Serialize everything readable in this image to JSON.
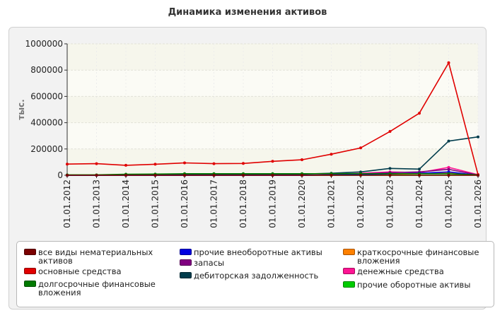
{
  "chart_data": {
    "type": "line",
    "title": "Динамика изменения активов",
    "ylabel": "тыс.",
    "xlabel": "",
    "ylim": [
      0,
      1000000
    ],
    "yticks": [
      "1000000",
      "800000",
      "600000",
      "400000",
      "200000",
      "0"
    ],
    "ytick_values": [
      1000000,
      800000,
      600000,
      400000,
      200000,
      0
    ],
    "categories": [
      "01.01.2012",
      "01.01.2013",
      "01.01.2014",
      "01.01.2015",
      "01.01.2016",
      "01.01.2017",
      "01.01.2018",
      "01.01.2019",
      "01.01.2020",
      "01.01.2021",
      "01.01.2022",
      "01.01.2023",
      "01.01.2024",
      "01.01.2025",
      "01.01.2026"
    ],
    "grid": true,
    "legend_position": "bottom",
    "series": [
      {
        "name": "все виды нематериальных активов",
        "color": "#7a0000",
        "values": [
          0,
          0,
          0,
          0,
          0,
          0,
          0,
          0,
          0,
          0,
          0,
          0,
          0,
          0,
          0
        ]
      },
      {
        "name": "основные средства",
        "color": "#e00000",
        "values": [
          85000,
          88000,
          76000,
          84000,
          94000,
          88000,
          90000,
          106000,
          118000,
          160000,
          208000,
          333000,
          472000,
          856000,
          5000
        ]
      },
      {
        "name": "долгосрочные финансовые вложения",
        "color": "#007a00",
        "values": [
          3000,
          3000,
          8000,
          9000,
          12000,
          12000,
          12000,
          12000,
          12000,
          12000,
          12000,
          12000,
          12000,
          12000,
          3000
        ]
      },
      {
        "name": "прочие внеоборотные активы",
        "color": "#0000e0",
        "values": [
          0,
          0,
          0,
          0,
          0,
          0,
          0,
          0,
          0,
          2000,
          5000,
          10000,
          15000,
          25000,
          0
        ]
      },
      {
        "name": "запасы",
        "color": "#800080",
        "values": [
          0,
          0,
          0,
          0,
          0,
          0,
          0,
          0,
          0,
          3000,
          10000,
          20000,
          25000,
          45000,
          2000
        ]
      },
      {
        "name": "дебиторская задолженность",
        "color": "#003c4c",
        "values": [
          0,
          0,
          2000,
          3000,
          5000,
          6000,
          7000,
          8000,
          9000,
          15000,
          25000,
          52000,
          47000,
          260000,
          292000
        ]
      },
      {
        "name": "краткосрочные финансовые вложения",
        "color": "#ff8000",
        "values": [
          0,
          0,
          0,
          0,
          0,
          0,
          0,
          0,
          0,
          0,
          3000,
          8000,
          12000,
          20000,
          0
        ]
      },
      {
        "name": "денежные средства",
        "color": "#ff1493",
        "values": [
          0,
          0,
          0,
          0,
          0,
          0,
          0,
          0,
          0,
          5000,
          15000,
          25000,
          20000,
          60000,
          5000
        ]
      },
      {
        "name": "прочие оборотные активы",
        "color": "#00cc00",
        "values": [
          0,
          0,
          0,
          0,
          0,
          0,
          0,
          0,
          0,
          0,
          0,
          0,
          0,
          0,
          0
        ]
      }
    ]
  }
}
